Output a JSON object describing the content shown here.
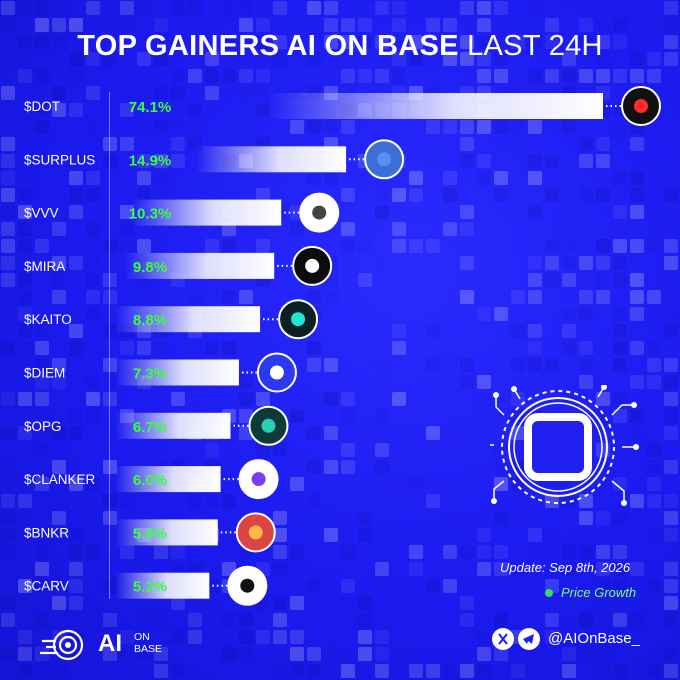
{
  "title": {
    "bold": "TOP GAINERS AI ON BASE",
    "normal": "LAST 24H"
  },
  "update_text": "Update: Sep 8th, 2026",
  "legend_label": "Price Growth",
  "brand": {
    "ai": "AI",
    "on": "ON",
    "base": "BASE"
  },
  "social_handle": "@AIOnBase_",
  "colors": {
    "background": "#1d1df2",
    "value_text": "#39ff3c",
    "legend_dot": "#2ee05a",
    "bar": "#ffffff"
  },
  "chart_data": {
    "type": "bar",
    "orientation": "horizontal",
    "categories": [
      "$DOT",
      "$SURPLUS",
      "$VVV",
      "$MIRA",
      "$KAITO",
      "$DIEM",
      "$OPG",
      "$CLANKER",
      "$BNKR",
      "$CARV"
    ],
    "values": [
      74.1,
      14.9,
      10.3,
      9.8,
      8.8,
      7.3,
      6.7,
      6.0,
      5.8,
      5.2
    ],
    "value_labels": [
      "74.1%",
      "14.9%",
      "10.3%",
      "9.8%",
      "8.8%",
      "7.3%",
      "6.7%",
      "6.0%",
      "5.8%",
      "5.2%"
    ],
    "icons": [
      "dot-logo-icon",
      "surplus-cube-icon",
      "vvv-keys-icon",
      "mira-logo-icon",
      "kaito-logo-icon",
      "diem-shield-icon",
      "opg-logo-icon",
      "clanker-bars-icon",
      "bnkr-tv-icon",
      "carv-logo-icon"
    ],
    "legend": [
      "Price Growth"
    ],
    "grid": false
  }
}
